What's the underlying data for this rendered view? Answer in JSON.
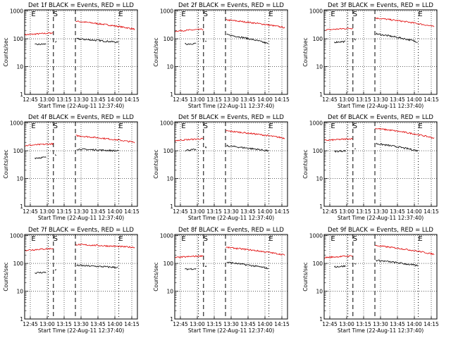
{
  "chart_data": [
    {
      "type": "line",
      "title": "Det 1f BLACK = Events, RED = LLD",
      "xlabel": "Start Time (22-Aug-11 12:37:40)",
      "ylabel": "Counts/sec",
      "yscale": "log",
      "ylim": [
        1,
        1100
      ],
      "x_ticks": [
        "12:45",
        "13:00",
        "13:15",
        "13:30",
        "13:45",
        "14:00",
        "14:15"
      ],
      "y_ticks": [
        "1",
        "10",
        "100",
        "1000"
      ],
      "grid": "dotted",
      "event_markers": [
        "E",
        "S",
        "E"
      ],
      "series": [
        {
          "name": "Events",
          "color": "#000000",
          "values": {
            "before": 65,
            "after_start": 100,
            "after_end": 68
          }
        },
        {
          "name": "LLD",
          "color": "#e00000",
          "values": {
            "before": 155,
            "after_start": 430,
            "after_end": 220
          }
        }
      ]
    },
    {
      "type": "line",
      "title": "Det 2f BLACK = Events, RED = LLD",
      "xlabel": "Start Time (22-Aug-11 12:37:40)",
      "ylabel": "Counts/sec",
      "yscale": "log",
      "ylim": [
        1,
        1100
      ],
      "x_ticks": [
        "12:45",
        "13:00",
        "13:15",
        "13:30",
        "13:45",
        "14:00",
        "14:15"
      ],
      "y_ticks": [
        "1",
        "10",
        "100",
        "1000"
      ],
      "grid": "dotted",
      "event_markers": [
        "E",
        "S",
        "E"
      ],
      "series": [
        {
          "name": "Events",
          "color": "#000000",
          "values": {
            "before": 68,
            "after_start": 140,
            "after_end": 60
          }
        },
        {
          "name": "LLD",
          "color": "#e00000",
          "values": {
            "before": 210,
            "after_start": 480,
            "after_end": 250
          }
        }
      ]
    },
    {
      "type": "line",
      "title": "Det 3f BLACK = Events, RED = LLD",
      "xlabel": "Start Time (22-Aug-11 12:37:40)",
      "ylabel": "Counts/sec",
      "yscale": "log",
      "ylim": [
        1,
        1100
      ],
      "x_ticks": [
        "12:45",
        "13:00",
        "13:15",
        "13:30",
        "13:45",
        "14:00",
        "14:15"
      ],
      "y_ticks": [
        "1",
        "10",
        "100",
        "1000"
      ],
      "grid": "dotted",
      "event_markers": [
        "E",
        "S",
        "E"
      ],
      "series": [
        {
          "name": "Events",
          "color": "#000000",
          "values": {
            "before": 80,
            "after_start": 150,
            "after_end": 70
          }
        },
        {
          "name": "LLD",
          "color": "#e00000",
          "values": {
            "before": 230,
            "after_start": 560,
            "after_end": 270
          }
        }
      ]
    },
    {
      "type": "line",
      "title": "Det 4f BLACK = Events, RED = LLD",
      "xlabel": "Start Time (22-Aug-11 12:37:40)",
      "ylabel": "Counts/sec",
      "yscale": "log",
      "ylim": [
        1,
        1100
      ],
      "x_ticks": [
        "12:45",
        "13:00",
        "13:15",
        "13:30",
        "13:45",
        "14:00",
        "14:15"
      ],
      "y_ticks": [
        "1",
        "10",
        "100",
        "1000"
      ],
      "grid": "dotted",
      "event_markers": [
        "E",
        "S",
        "E"
      ],
      "series": [
        {
          "name": "Events",
          "color": "#000000",
          "values": {
            "before": 58,
            "after_start": 115,
            "after_end": 90
          }
        },
        {
          "name": "LLD",
          "color": "#e00000",
          "values": {
            "before": 170,
            "after_start": 350,
            "after_end": 200
          }
        }
      ]
    },
    {
      "type": "line",
      "title": "Det 5f BLACK = Events, RED = LLD",
      "xlabel": "Start Time (22-Aug-11 12:37:40)",
      "ylabel": "Counts/sec",
      "yscale": "log",
      "ylim": [
        1,
        1100
      ],
      "x_ticks": [
        "12:45",
        "13:00",
        "13:15",
        "13:30",
        "13:45",
        "14:00",
        "14:15"
      ],
      "y_ticks": [
        "1",
        "10",
        "100",
        "1000"
      ],
      "grid": "dotted",
      "event_markers": [
        "E",
        "S",
        "E"
      ],
      "series": [
        {
          "name": "Events",
          "color": "#000000",
          "values": {
            "before": 110,
            "after_start": 150,
            "after_end": 90
          }
        },
        {
          "name": "LLD",
          "color": "#e00000",
          "values": {
            "before": 260,
            "after_start": 520,
            "after_end": 280
          }
        }
      ]
    },
    {
      "type": "line",
      "title": "Det 6f BLACK = Events, RED = LLD",
      "xlabel": "Start Time (22-Aug-11 12:37:40)",
      "ylabel": "Counts/sec",
      "yscale": "log",
      "ylim": [
        1,
        1100
      ],
      "x_ticks": [
        "12:45",
        "13:00",
        "13:15",
        "13:30",
        "13:45",
        "14:00",
        "14:15"
      ],
      "y_ticks": [
        "1",
        "10",
        "100",
        "1000"
      ],
      "grid": "dotted",
      "event_markers": [
        "E",
        "S",
        "E"
      ],
      "series": [
        {
          "name": "Events",
          "color": "#000000",
          "values": {
            "before": 100,
            "after_start": 180,
            "after_end": 90
          }
        },
        {
          "name": "LLD",
          "color": "#e00000",
          "values": {
            "before": 260,
            "after_start": 640,
            "after_end": 280
          }
        }
      ]
    },
    {
      "type": "line",
      "title": "Det 7f BLACK = Events, RED = LLD",
      "xlabel": "Start Time (22-Aug-11 12:37:40)",
      "ylabel": "Counts/sec",
      "yscale": "log",
      "ylim": [
        1,
        1100
      ],
      "x_ticks": [
        "12:45",
        "13:00",
        "13:15",
        "13:30",
        "13:45",
        "14:00",
        "14:15"
      ],
      "y_ticks": [
        "1",
        "10",
        "100",
        "1000"
      ],
      "grid": "dotted",
      "event_markers": [
        "E",
        "S",
        "E"
      ],
      "series": [
        {
          "name": "Events",
          "color": "#000000",
          "values": {
            "before": 48,
            "after_start": 85,
            "after_end": 65
          }
        },
        {
          "name": "LLD",
          "color": "#e00000",
          "values": {
            "before": 330,
            "after_start": 480,
            "after_end": 380
          }
        }
      ]
    },
    {
      "type": "line",
      "title": "Det 8f BLACK = Events, RED = LLD",
      "xlabel": "Start Time (22-Aug-11 12:37:40)",
      "ylabel": "Counts/sec",
      "yscale": "log",
      "ylim": [
        1,
        1100
      ],
      "x_ticks": [
        "12:45",
        "13:00",
        "13:15",
        "13:30",
        "13:45",
        "14:00",
        "14:15"
      ],
      "y_ticks": [
        "1",
        "10",
        "100",
        "1000"
      ],
      "grid": "dotted",
      "event_markers": [
        "E",
        "S",
        "E"
      ],
      "series": [
        {
          "name": "Events",
          "color": "#000000",
          "values": {
            "before": 65,
            "after_start": 110,
            "after_end": 60
          }
        },
        {
          "name": "LLD",
          "color": "#e00000",
          "values": {
            "before": 180,
            "after_start": 380,
            "after_end": 200
          }
        }
      ]
    },
    {
      "type": "line",
      "title": "Det 9f BLACK = Events, RED = LLD",
      "xlabel": "Start Time (22-Aug-11 12:37:40)",
      "ylabel": "Counts/sec",
      "yscale": "log",
      "ylim": [
        1,
        1100
      ],
      "x_ticks": [
        "12:45",
        "13:00",
        "13:15",
        "13:30",
        "13:45",
        "14:00",
        "14:15"
      ],
      "y_ticks": [
        "1",
        "10",
        "100",
        "1000"
      ],
      "grid": "dotted",
      "event_markers": [
        "E",
        "S",
        "E"
      ],
      "series": [
        {
          "name": "Events",
          "color": "#000000",
          "values": {
            "before": 80,
            "after_start": 130,
            "after_end": 75
          }
        },
        {
          "name": "LLD",
          "color": "#e00000",
          "values": {
            "before": 180,
            "after_start": 440,
            "after_end": 210
          }
        }
      ]
    }
  ]
}
